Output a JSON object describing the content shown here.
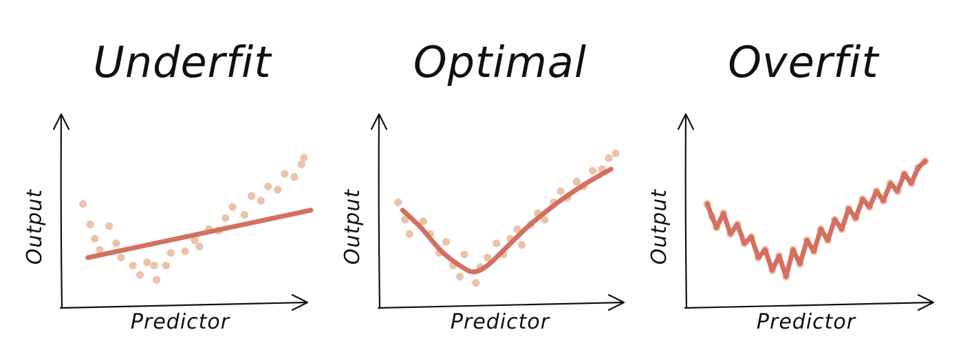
{
  "colors": {
    "point": "#ebc3a9",
    "fit": "#d4705f",
    "ink": "#111111"
  },
  "chart_data": [
    {
      "type": "scatter",
      "title": "Underfit",
      "xlabel": "Predictor",
      "ylabel": "Output",
      "xlim": [
        0,
        10
      ],
      "ylim": [
        0,
        10
      ],
      "points": [
        [
          0.6,
          5.8
        ],
        [
          0.9,
          4.5
        ],
        [
          1.1,
          3.6
        ],
        [
          1.3,
          2.9
        ],
        [
          1.7,
          4.4
        ],
        [
          2.0,
          3.3
        ],
        [
          2.2,
          2.4
        ],
        [
          2.7,
          1.9
        ],
        [
          3.0,
          1.3
        ],
        [
          3.3,
          2.1
        ],
        [
          3.7,
          1.0
        ],
        [
          3.6,
          1.9
        ],
        [
          4.1,
          1.9
        ],
        [
          4.3,
          2.7
        ],
        [
          4.9,
          2.8
        ],
        [
          5.3,
          3.5
        ],
        [
          5.5,
          3.1
        ],
        [
          5.9,
          4.2
        ],
        [
          6.3,
          4.1
        ],
        [
          6.6,
          4.9
        ],
        [
          6.9,
          5.6
        ],
        [
          7.4,
          5.1
        ],
        [
          7.7,
          6.3
        ],
        [
          8.1,
          6.0
        ],
        [
          8.4,
          6.9
        ],
        [
          8.8,
          6.7
        ],
        [
          9.1,
          7.7
        ],
        [
          9.5,
          7.5
        ],
        [
          9.8,
          8.3
        ],
        [
          9.9,
          8.7
        ]
      ],
      "fit": {
        "kind": "linear",
        "points": [
          [
            0.8,
            2.4
          ],
          [
            10.2,
            5.4
          ]
        ]
      }
    },
    {
      "type": "scatter",
      "title": "Optimal",
      "xlabel": "Predictor",
      "ylabel": "Output",
      "xlim": [
        0,
        10
      ],
      "ylim": [
        0,
        10
      ],
      "points": [
        [
          0.5,
          5.9
        ],
        [
          0.8,
          4.8
        ],
        [
          1.0,
          3.9
        ],
        [
          1.6,
          4.7
        ],
        [
          1.9,
          3.9
        ],
        [
          2.3,
          2.7
        ],
        [
          2.6,
          3.4
        ],
        [
          2.9,
          1.9
        ],
        [
          3.2,
          1.2
        ],
        [
          3.4,
          2.6
        ],
        [
          3.9,
          0.8
        ],
        [
          4.1,
          1.8
        ],
        [
          4.4,
          2.4
        ],
        [
          4.8,
          3.3
        ],
        [
          5.1,
          2.6
        ],
        [
          5.4,
          3.6
        ],
        [
          5.7,
          4.2
        ],
        [
          5.9,
          3.2
        ],
        [
          6.3,
          4.5
        ],
        [
          6.6,
          5.2
        ],
        [
          6.9,
          4.8
        ],
        [
          7.3,
          5.9
        ],
        [
          7.6,
          6.6
        ],
        [
          7.9,
          6.2
        ],
        [
          8.3,
          7.2
        ],
        [
          8.6,
          6.9
        ],
        [
          9.0,
          7.9
        ],
        [
          9.4,
          8.0
        ],
        [
          9.7,
          8.7
        ],
        [
          10.0,
          9.0
        ]
      ],
      "fit": {
        "kind": "smooth",
        "points": [
          [
            0.7,
            5.4
          ],
          [
            1.5,
            4.3
          ],
          [
            2.4,
            2.8
          ],
          [
            3.2,
            1.9
          ],
          [
            3.8,
            1.5
          ],
          [
            4.4,
            1.9
          ],
          [
            5.2,
            3.0
          ],
          [
            6.2,
            4.4
          ],
          [
            7.4,
            5.8
          ],
          [
            8.6,
            7.0
          ],
          [
            9.8,
            8.0
          ]
        ]
      }
    },
    {
      "type": "scatter",
      "title": "Overfit",
      "xlabel": "Predictor",
      "ylabel": "Output",
      "xlim": [
        0,
        10
      ],
      "ylim": [
        0,
        10
      ],
      "points": [
        [
          0.6,
          5.8
        ],
        [
          0.8,
          5.0
        ],
        [
          1.0,
          4.3
        ],
        [
          1.3,
          5.2
        ],
        [
          1.6,
          3.9
        ],
        [
          1.9,
          4.5
        ],
        [
          2.2,
          3.3
        ],
        [
          2.5,
          3.7
        ],
        [
          2.8,
          2.4
        ],
        [
          3.1,
          2.9
        ],
        [
          3.4,
          1.6
        ],
        [
          3.7,
          2.5
        ],
        [
          4.0,
          1.2
        ],
        [
          4.3,
          2.9
        ],
        [
          4.6,
          2.0
        ],
        [
          4.9,
          3.5
        ],
        [
          5.2,
          2.8
        ],
        [
          5.5,
          4.2
        ],
        [
          5.8,
          3.5
        ],
        [
          6.1,
          4.8
        ],
        [
          6.4,
          4.2
        ],
        [
          6.7,
          5.5
        ],
        [
          7.0,
          4.9
        ],
        [
          7.3,
          6.1
        ],
        [
          7.6,
          5.6
        ],
        [
          7.9,
          6.6
        ],
        [
          8.2,
          6.0
        ],
        [
          8.5,
          7.1
        ],
        [
          8.8,
          6.6
        ],
        [
          9.1,
          7.7
        ],
        [
          9.4,
          7.1
        ],
        [
          9.7,
          8.1
        ],
        [
          10.0,
          8.5
        ]
      ],
      "fit": {
        "kind": "polyline",
        "points": [
          [
            0.6,
            5.8
          ],
          [
            0.8,
            5.0
          ],
          [
            1.0,
            4.3
          ],
          [
            1.3,
            5.2
          ],
          [
            1.6,
            3.9
          ],
          [
            1.9,
            4.5
          ],
          [
            2.2,
            3.3
          ],
          [
            2.5,
            3.7
          ],
          [
            2.8,
            2.4
          ],
          [
            3.1,
            2.9
          ],
          [
            3.4,
            1.6
          ],
          [
            3.7,
            2.5
          ],
          [
            4.0,
            1.2
          ],
          [
            4.3,
            2.9
          ],
          [
            4.6,
            2.0
          ],
          [
            4.9,
            3.5
          ],
          [
            5.2,
            2.8
          ],
          [
            5.5,
            4.2
          ],
          [
            5.8,
            3.5
          ],
          [
            6.1,
            4.8
          ],
          [
            6.4,
            4.2
          ],
          [
            6.7,
            5.5
          ],
          [
            7.0,
            4.9
          ],
          [
            7.3,
            6.1
          ],
          [
            7.6,
            5.6
          ],
          [
            7.9,
            6.6
          ],
          [
            8.2,
            6.0
          ],
          [
            8.5,
            7.1
          ],
          [
            8.8,
            6.6
          ],
          [
            9.1,
            7.7
          ],
          [
            9.4,
            7.1
          ],
          [
            9.7,
            8.1
          ],
          [
            10.0,
            8.5
          ]
        ]
      }
    }
  ]
}
